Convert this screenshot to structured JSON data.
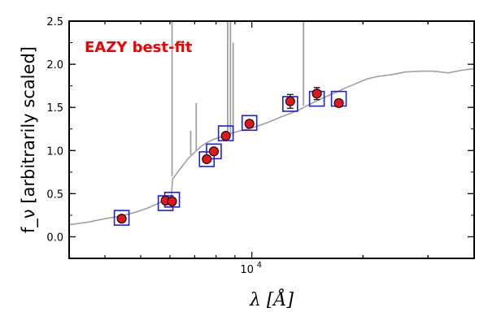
{
  "chart_data": {
    "type": "scatter",
    "title": "",
    "annotation": "EAZY best-fit",
    "xlabel": "λ [Å]",
    "ylabel": "f_ν [arbitrarily scaled]",
    "x_scale": "log",
    "xlim": [
      3200,
      40000
    ],
    "ylim": [
      -0.25,
      2.5
    ],
    "y_ticks": [
      0.0,
      0.5,
      1.0,
      1.5,
      2.0,
      2.5
    ],
    "y_tick_labels": [
      "0.0",
      "0.5",
      "1.0",
      "1.5",
      "2.0",
      "2.5"
    ],
    "x_tick_labels": [
      {
        "base": "10",
        "exp": "4",
        "value": 10000
      }
    ],
    "grid": false,
    "colors": {
      "template": "#a0a0a0",
      "observed_fill": "#e8141b",
      "model_box": "#1f1fd6",
      "annotation": "#ee0000"
    },
    "series": [
      {
        "kind": "template_line",
        "x": [
          3200,
          3600,
          4000,
          4400,
          4800,
          5200,
          5600,
          5900,
          6050,
          6100,
          6400,
          6700,
          7000,
          7300,
          7600,
          8000,
          8400,
          8800,
          9300,
          9800,
          10300,
          10800,
          11400,
          12000,
          12700,
          13400,
          14100,
          14900,
          15800,
          16800,
          17800,
          19000,
          20500,
          22000,
          24000,
          26000,
          28500,
          31000,
          34000,
          37000,
          40000
        ],
        "y": [
          0.14,
          0.17,
          0.21,
          0.24,
          0.28,
          0.33,
          0.39,
          0.44,
          0.46,
          0.67,
          0.79,
          0.9,
          0.98,
          1.05,
          1.1,
          1.14,
          1.17,
          1.2,
          1.23,
          1.25,
          1.28,
          1.31,
          1.35,
          1.39,
          1.43,
          1.47,
          1.52,
          1.57,
          1.62,
          1.67,
          1.72,
          1.77,
          1.83,
          1.86,
          1.88,
          1.91,
          1.92,
          1.92,
          1.9,
          1.93,
          1.95
        ]
      },
      {
        "kind": "emission_lines",
        "lines": [
          {
            "x": 6080,
            "y_bottom": 0.7,
            "y_top": 2.5
          },
          {
            "x": 6830,
            "y_bottom": 0.95,
            "y_top": 1.23
          },
          {
            "x": 7070,
            "y_bottom": 1.0,
            "y_top": 1.55
          },
          {
            "x": 8600,
            "y_bottom": 1.18,
            "y_top": 2.5
          },
          {
            "x": 8750,
            "y_bottom": 1.18,
            "y_top": 2.5
          },
          {
            "x": 8900,
            "y_bottom": 1.18,
            "y_top": 2.25
          },
          {
            "x": 13800,
            "y_bottom": 1.52,
            "y_top": 2.5
          }
        ]
      },
      {
        "kind": "model_photometry",
        "x": [
          4440,
          5840,
          6080,
          7550,
          7890,
          8500,
          9850,
          12700,
          15000,
          17200
        ],
        "y": [
          0.22,
          0.39,
          0.43,
          0.9,
          0.99,
          1.2,
          1.32,
          1.54,
          1.6,
          1.6
        ]
      },
      {
        "kind": "observed_photometry",
        "x": [
          4440,
          5840,
          6080,
          7550,
          7890,
          8500,
          9850,
          12700,
          15000,
          17200
        ],
        "y": [
          0.21,
          0.42,
          0.41,
          0.9,
          0.99,
          1.17,
          1.31,
          1.57,
          1.66,
          1.55
        ],
        "yerr": [
          0.02,
          0.02,
          0.02,
          0.03,
          0.03,
          0.03,
          0.04,
          0.08,
          0.07,
          0.04
        ]
      }
    ]
  }
}
